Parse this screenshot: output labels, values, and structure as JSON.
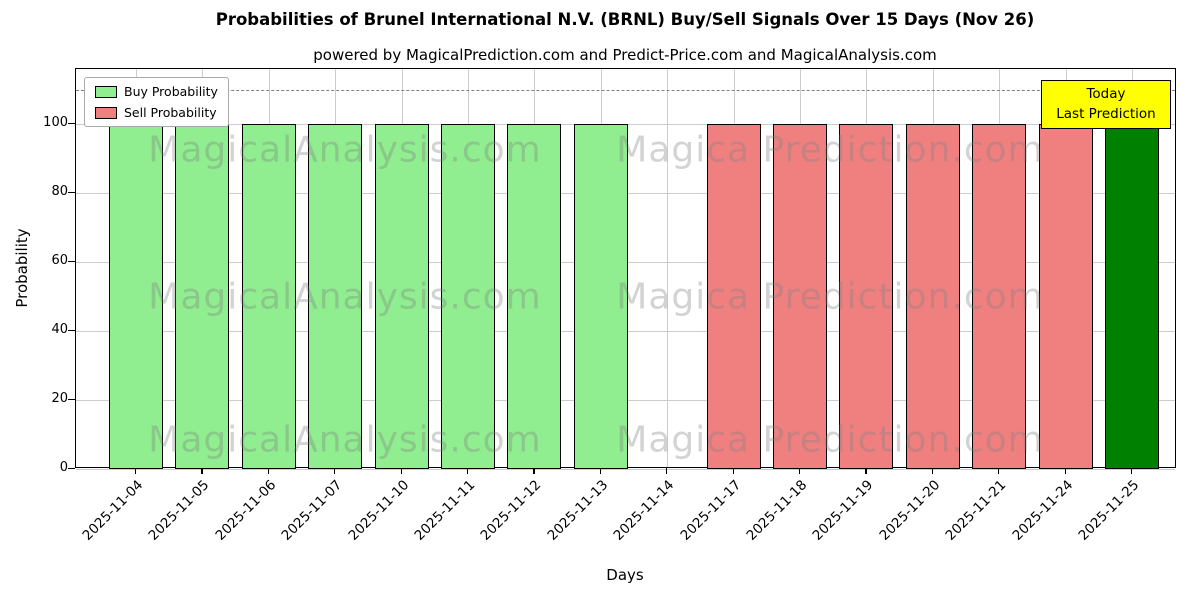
{
  "chart_data": {
    "type": "bar",
    "title": "Probabilities of Brunel International N.V. (BRNL) Buy/Sell Signals Over 15 Days (Nov 26)",
    "subtitle": "powered by MagicalPrediction.com and Predict-Price.com and MagicalAnalysis.com",
    "xlabel": "Days",
    "ylabel": "Probability",
    "ylim": [
      0,
      116
    ],
    "yticks": [
      0,
      20,
      40,
      60,
      80,
      100
    ],
    "grid": true,
    "legend_position": "upper-left",
    "dashed_line_y": 110,
    "categories": [
      "2025-11-04",
      "2025-11-05",
      "2025-11-06",
      "2025-11-07",
      "2025-11-10",
      "2025-11-11",
      "2025-11-12",
      "2025-11-13",
      "2025-11-14",
      "2025-11-17",
      "2025-11-18",
      "2025-11-19",
      "2025-11-20",
      "2025-11-21",
      "2025-11-24",
      "2025-11-25"
    ],
    "series": [
      {
        "name": "Buy Probability",
        "color": "#90EE90",
        "values": [
          100,
          100,
          100,
          100,
          100,
          100,
          100,
          100,
          0,
          0,
          0,
          0,
          0,
          0,
          0,
          0
        ]
      },
      {
        "name": "Sell Probability",
        "color": "#F08080",
        "values": [
          0,
          0,
          0,
          0,
          0,
          0,
          0,
          0,
          0,
          100,
          100,
          100,
          100,
          100,
          100,
          0
        ]
      },
      {
        "name": "Today Last Prediction",
        "color": "#008000",
        "values": [
          0,
          0,
          0,
          0,
          0,
          0,
          0,
          0,
          0,
          0,
          0,
          0,
          0,
          0,
          0,
          100
        ]
      }
    ]
  },
  "annotation_box": {
    "lines": [
      "Today",
      "Last Prediction"
    ],
    "bg_color": "#ffff00"
  },
  "watermark": {
    "texts": [
      "MagicalAnalysis.com",
      "Magica Prediction.com"
    ]
  },
  "colors": {
    "bar_edge": "#000000",
    "grid": "#cccccc",
    "dashed_line": "#808080",
    "annotation_border": "#000000"
  }
}
